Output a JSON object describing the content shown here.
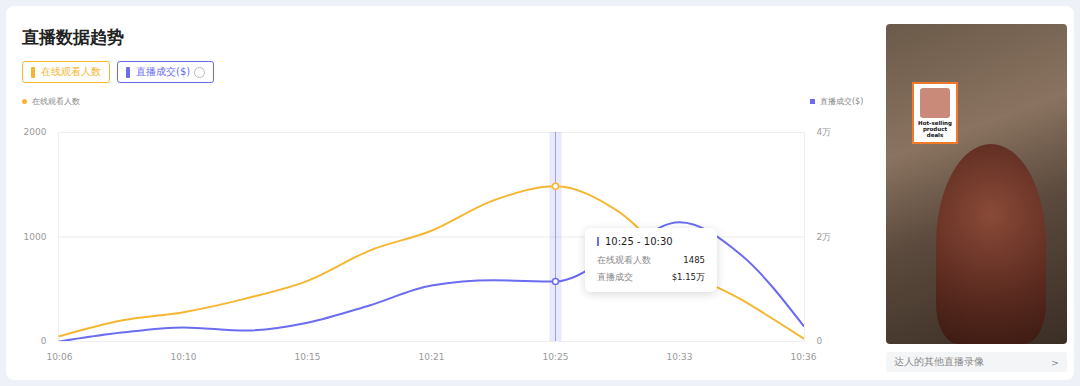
{
  "chart_data": {
    "type": "line",
    "title": "直播数据趋势",
    "categories": [
      "10:06",
      null,
      "10:10",
      null,
      "10:15",
      null,
      "10:21",
      null,
      "10:25",
      null,
      "10:33",
      null,
      "10:36"
    ],
    "series": [
      {
        "name": "在线观看人数",
        "color": "#f5b731",
        "values": [
          50,
          200,
          280,
          410,
          580,
          870,
          1060,
          1350,
          1485,
          1250,
          720,
          400,
          30
        ]
      },
      {
        "name": "直播成交($)",
        "color": "#6c6cf0",
        "axis": "y2",
        "values": [
          0,
          1700,
          2700,
          2100,
          3600,
          6900,
          10700,
          11700,
          11500,
          17000,
          22800,
          16500,
          3000
        ]
      }
    ],
    "ylim": [
      0,
      2000
    ],
    "yticks": [
      0,
      1000,
      2000
    ],
    "y2lim": [
      0,
      40000
    ],
    "y2ticks": [
      0,
      {
        "value": 20000,
        "label": "2万"
      },
      {
        "value": 40000,
        "label": "4万"
      }
    ],
    "grid": true,
    "legend": "top",
    "tooltip": {
      "x": "10:25",
      "title": "10:25 - 10:30",
      "rows": [
        {
          "name": "在线观看人数",
          "value": 1485,
          "label": "1485"
        },
        {
          "name": "直播成交",
          "value": 11500,
          "label": "$1.15万"
        }
      ]
    }
  },
  "side_panel": {
    "badge": "Hot-selling product deals",
    "link": "达人的其他直播录像",
    "link_arrow": ">"
  }
}
